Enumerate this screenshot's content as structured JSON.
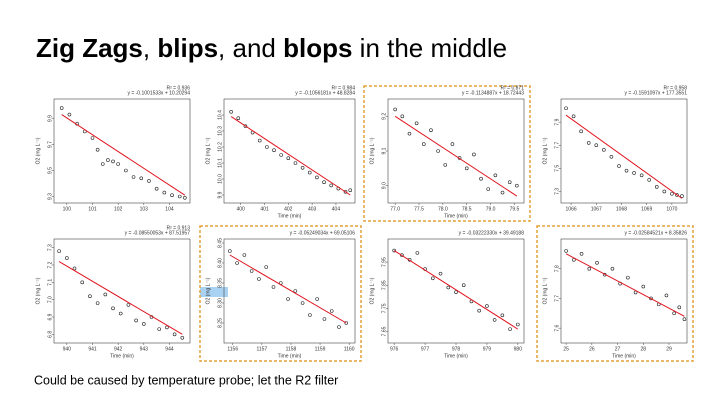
{
  "title": [
    {
      "text": "Zig Zags",
      "bold": true
    },
    {
      "text": ", "
    },
    {
      "text": "blips",
      "bold": true
    },
    {
      "text": ", and "
    },
    {
      "text": "blops",
      "bold": true
    },
    {
      "text": " in the middle"
    }
  ],
  "caption": "Could be caused by temperature probe; let the R2 filter",
  "chart_data": [
    {
      "type": "scatter",
      "equation": "y = -0.1001533x + 10.20294",
      "r2": "R² = 0.936",
      "ylabel": "O2 (mg L⁻¹)",
      "xlim": [
        99.5,
        104.8
      ],
      "xticks": [
        100,
        101,
        102,
        103,
        104
      ],
      "ylim": [
        9.25,
        10.05
      ],
      "yticks": [
        9.3,
        9.5,
        9.7,
        9.9
      ],
      "x": [
        99.8,
        100.1,
        100.4,
        100.7,
        101.0,
        101.2,
        101.4,
        101.6,
        101.8,
        102.0,
        102.3,
        102.6,
        102.9,
        103.2,
        103.5,
        103.8,
        104.1,
        104.4,
        104.6
      ],
      "values": [
        9.98,
        9.93,
        9.86,
        9.8,
        9.75,
        9.66,
        9.55,
        9.58,
        9.57,
        9.55,
        9.5,
        9.45,
        9.44,
        9.42,
        9.36,
        9.33,
        9.31,
        9.3,
        9.29
      ],
      "color": "#222222",
      "fit": {
        "x": [
          99.8,
          104.6
        ],
        "values": [
          9.93,
          9.31
        ],
        "color": "#e0141e"
      }
    },
    {
      "type": "scatter",
      "equation": "y = -0.1056181x + 48.8284",
      "r2": "R² = 0.984",
      "ylabel": "O2 (mg L⁻¹)",
      "xlabel": "Time (min)",
      "xlim": [
        399.3,
        404.8
      ],
      "xticks": [
        400,
        401,
        402,
        403,
        404
      ],
      "ylim": [
        9.85,
        10.5
      ],
      "yticks": [
        9.9,
        {
          "value": 10,
          "label": "10.0"
        },
        10.1,
        10.2,
        10.3,
        10.4
      ],
      "x": [
        399.6,
        399.9,
        400.2,
        400.5,
        400.8,
        401.1,
        401.4,
        401.7,
        402.0,
        402.3,
        402.6,
        402.9,
        403.2,
        403.5,
        403.8,
        404.1,
        404.4,
        404.6
      ],
      "values": [
        10.42,
        10.38,
        10.33,
        10.29,
        10.24,
        10.2,
        10.18,
        10.15,
        10.13,
        10.1,
        10.07,
        10.04,
        10.01,
        9.98,
        9.96,
        9.94,
        9.92,
        9.93
      ],
      "color": "#222222",
      "fit": {
        "x": [
          399.6,
          404.6
        ],
        "values": [
          10.39,
          9.9
        ],
        "color": "#e0141e"
      }
    },
    {
      "type": "scatter",
      "equation": "y = -0.1134887x + 18.72443",
      "r2": "R² = 0.871",
      "ylabel": "O2 (mg L⁻¹)",
      "xlabel": "Time (min)",
      "highlight": true,
      "xlim": [
        76.85,
        79.7
      ],
      "xticks": [
        {
          "value": 77,
          "label": "77.0"
        },
        77.5,
        {
          "value": 78,
          "label": "78.0"
        },
        78.5,
        {
          "value": 79,
          "label": "79.0"
        },
        79.5
      ],
      "ylim": [
        8.95,
        9.25
      ],
      "yticks": [
        {
          "value": 9,
          "label": "9.0"
        },
        9.1,
        9.2
      ],
      "x": [
        77.0,
        77.15,
        77.3,
        77.45,
        77.6,
        77.75,
        77.9,
        78.05,
        78.2,
        78.35,
        78.5,
        78.65,
        78.8,
        78.95,
        79.1,
        79.25,
        79.4,
        79.55
      ],
      "values": [
        9.22,
        9.2,
        9.15,
        9.18,
        9.12,
        9.16,
        9.1,
        9.06,
        9.12,
        9.08,
        9.05,
        9.09,
        9.02,
        8.99,
        9.03,
        8.98,
        9.01,
        9.0
      ],
      "color": "#222222",
      "fit": {
        "x": [
          77.0,
          79.55
        ],
        "values": [
          9.2,
          8.97
        ],
        "color": "#e0141e"
      }
    },
    {
      "type": "scatter",
      "equation": "y = -0.1591097x + 177.3551",
      "r2": "R² = 0.958",
      "ylabel": "O2 (mg L⁻¹)",
      "xlim": [
        1065.6,
        1070.6
      ],
      "xticks": [
        1066,
        1067,
        1068,
        1069,
        1070
      ],
      "ylim": [
        7.2,
        8.1
      ],
      "yticks": [
        7.3,
        7.5,
        7.7,
        7.9
      ],
      "x": [
        1065.8,
        1066.1,
        1066.4,
        1066.7,
        1067.0,
        1067.3,
        1067.6,
        1067.9,
        1068.2,
        1068.5,
        1068.8,
        1069.1,
        1069.4,
        1069.7,
        1070.0,
        1070.2,
        1070.4
      ],
      "values": [
        8.02,
        7.95,
        7.82,
        7.72,
        7.7,
        7.66,
        7.6,
        7.52,
        7.48,
        7.46,
        7.44,
        7.4,
        7.34,
        7.3,
        7.28,
        7.27,
        7.26
      ],
      "color": "#222222",
      "fit": {
        "x": [
          1065.8,
          1070.4
        ],
        "values": [
          7.96,
          7.24
        ],
        "color": "#e0141e"
      }
    },
    {
      "type": "scatter",
      "equation": "y = -0.08550053x + 87.51957",
      "r2": "R² = 0.913",
      "ylabel": "O2 (mg L⁻¹)",
      "xlabel": "Time (min)",
      "xlim": [
        939.5,
        944.8
      ],
      "xticks": [
        940,
        941,
        942,
        943,
        944
      ],
      "ylim": [
        6.75,
        7.35
      ],
      "yticks": [
        6.8,
        6.9,
        {
          "value": 7,
          "label": "7.0"
        },
        7.1,
        7.2,
        7.3
      ],
      "x": [
        939.7,
        940.0,
        940.3,
        940.6,
        940.9,
        941.2,
        941.5,
        941.8,
        942.1,
        942.4,
        942.7,
        943.0,
        943.3,
        943.6,
        943.9,
        944.2,
        944.5
      ],
      "values": [
        7.28,
        7.24,
        7.18,
        7.1,
        7.02,
        6.98,
        7.03,
        6.95,
        6.92,
        6.97,
        6.88,
        6.86,
        6.9,
        6.83,
        6.84,
        6.8,
        6.78
      ],
      "color": "#222222",
      "fit": {
        "x": [
          939.7,
          944.5
        ],
        "values": [
          7.22,
          6.8
        ],
        "color": "#e0141e"
      }
    },
    {
      "type": "scatter",
      "equation": "y = -0.05249034x + 69.05106",
      "ylabel": "O2 (mg L⁻¹)",
      "xlabel": "Time (min)",
      "highlight": true,
      "xlim": [
        1155.7,
        1160.2
      ],
      "xticks": [
        1156,
        1157,
        1158,
        1159,
        1160
      ],
      "ylim": [
        8.2,
        8.46
      ],
      "yticks": [
        8.25,
        {
          "value": 8.3,
          "label": "8.30"
        },
        8.35,
        {
          "value": 8.4,
          "label": "8.40"
        },
        8.45
      ],
      "x": [
        1155.9,
        1156.15,
        1156.4,
        1156.65,
        1156.9,
        1157.15,
        1157.4,
        1157.65,
        1157.9,
        1158.15,
        1158.4,
        1158.65,
        1158.9,
        1159.15,
        1159.4,
        1159.65,
        1159.9
      ],
      "values": [
        8.43,
        8.4,
        8.42,
        8.38,
        8.36,
        8.39,
        8.34,
        8.35,
        8.31,
        8.33,
        8.3,
        8.27,
        8.31,
        8.26,
        8.28,
        8.24,
        8.25
      ],
      "color": "#222222",
      "fit": {
        "x": [
          1155.9,
          1159.9
        ],
        "values": [
          8.42,
          8.25
        ],
        "color": "#e0141e"
      }
    },
    {
      "type": "scatter",
      "equation": "y = -0.03222330x + 39.49188",
      "ylabel": "O2 (mg L⁻¹)",
      "xlabel": "Time (min)",
      "xlim": [
        975.8,
        980.2
      ],
      "xticks": [
        976,
        977,
        978,
        979,
        980
      ],
      "ylim": [
        7.6,
        8.05
      ],
      "yticks": [
        7.65,
        7.75,
        7.85,
        7.95
      ],
      "x": [
        976.0,
        976.25,
        976.5,
        976.75,
        977.0,
        977.25,
        977.5,
        977.75,
        978.0,
        978.25,
        978.5,
        978.75,
        979.0,
        979.25,
        979.5,
        979.75,
        980.0
      ],
      "values": [
        8.0,
        7.98,
        7.96,
        7.99,
        7.92,
        7.88,
        7.9,
        7.84,
        7.82,
        7.85,
        7.78,
        7.74,
        7.76,
        7.7,
        7.72,
        7.66,
        7.68
      ],
      "color": "#222222",
      "fit": {
        "x": [
          976.0,
          980.0
        ],
        "values": [
          8.0,
          7.66
        ],
        "color": "#e0141e"
      }
    },
    {
      "type": "scatter",
      "equation": "y = -0.02584521x + 8.35826",
      "ylabel": "O2 (mg L⁻¹)",
      "xlabel": "Time (min)",
      "highlight": true,
      "xlim": [
        24.8,
        29.7
      ],
      "xticks": [
        25,
        26,
        27,
        28,
        29
      ],
      "ylim": [
        7.55,
        7.9
      ],
      "yticks": [
        7.6,
        7.7,
        7.8
      ],
      "x": [
        25.0,
        25.3,
        25.6,
        25.9,
        26.2,
        26.5,
        26.8,
        27.1,
        27.4,
        27.7,
        28.0,
        28.3,
        28.6,
        28.9,
        29.2,
        29.4,
        29.6
      ],
      "values": [
        7.86,
        7.83,
        7.85,
        7.8,
        7.82,
        7.78,
        7.8,
        7.75,
        7.77,
        7.72,
        7.74,
        7.7,
        7.68,
        7.71,
        7.65,
        7.67,
        7.63
      ],
      "color": "#222222",
      "fit": {
        "x": [
          25.0,
          29.6
        ],
        "values": [
          7.85,
          7.64
        ],
        "color": "#e0141e"
      }
    }
  ]
}
